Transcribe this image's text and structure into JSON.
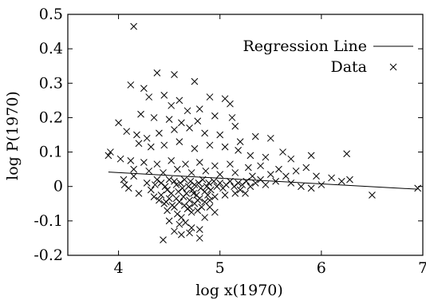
{
  "chart_data": {
    "type": "scatter",
    "xlabel": "log x(1970)",
    "ylabel": "log P(1970)",
    "xlim": [
      3.5,
      7
    ],
    "ylim": [
      -0.2,
      0.5
    ],
    "x_ticks": [
      "4",
      "5",
      "6",
      "7"
    ],
    "y_ticks": [
      "-0.2",
      "-0.1",
      "0",
      "0.1",
      "0.2",
      "0.3",
      "0.4",
      "0.5"
    ],
    "grid": false,
    "legend_position": "top-right",
    "series": [
      {
        "name": "Regression Line",
        "kind": "line",
        "points": [
          [
            3.9,
            0.042
          ],
          [
            6.95,
            -0.008
          ]
        ]
      },
      {
        "name": "Data",
        "kind": "scatter",
        "marker": "x",
        "points": [
          [
            4.15,
            0.465
          ],
          [
            4.38,
            0.33
          ],
          [
            4.55,
            0.325
          ],
          [
            4.25,
            0.285
          ],
          [
            4.12,
            0.295
          ],
          [
            4.75,
            0.305
          ],
          [
            4.3,
            0.26
          ],
          [
            4.45,
            0.265
          ],
          [
            4.6,
            0.25
          ],
          [
            4.9,
            0.26
          ],
          [
            5.05,
            0.255
          ],
          [
            5.1,
            0.24
          ],
          [
            4.52,
            0.235
          ],
          [
            4.68,
            0.22
          ],
          [
            4.8,
            0.225
          ],
          [
            4.22,
            0.21
          ],
          [
            4.35,
            0.2
          ],
          [
            4.5,
            0.195
          ],
          [
            4.62,
            0.185
          ],
          [
            4.78,
            0.19
          ],
          [
            4.95,
            0.205
          ],
          [
            5.12,
            0.2
          ],
          [
            5.15,
            0.175
          ],
          [
            4.0,
            0.185
          ],
          [
            4.08,
            0.16
          ],
          [
            4.18,
            0.15
          ],
          [
            4.28,
            0.14
          ],
          [
            4.4,
            0.155
          ],
          [
            4.55,
            0.165
          ],
          [
            4.7,
            0.17
          ],
          [
            4.85,
            0.155
          ],
          [
            5.0,
            0.15
          ],
          [
            5.2,
            0.13
          ],
          [
            5.35,
            0.145
          ],
          [
            5.5,
            0.14
          ],
          [
            4.2,
            0.125
          ],
          [
            4.32,
            0.115
          ],
          [
            4.45,
            0.12
          ],
          [
            4.6,
            0.13
          ],
          [
            4.75,
            0.11
          ],
          [
            4.9,
            0.12
          ],
          [
            5.05,
            0.115
          ],
          [
            5.18,
            0.105
          ],
          [
            5.3,
            0.09
          ],
          [
            5.45,
            0.085
          ],
          [
            5.62,
            0.1
          ],
          [
            5.7,
            0.08
          ],
          [
            5.9,
            0.09
          ],
          [
            6.25,
            0.095
          ],
          [
            3.92,
            0.1
          ],
          [
            3.9,
            0.09
          ],
          [
            4.02,
            0.08
          ],
          [
            4.12,
            0.075
          ],
          [
            4.25,
            0.07
          ],
          [
            4.38,
            0.065
          ],
          [
            4.52,
            0.075
          ],
          [
            4.66,
            0.065
          ],
          [
            4.8,
            0.07
          ],
          [
            4.95,
            0.06
          ],
          [
            5.1,
            0.065
          ],
          [
            5.28,
            0.055
          ],
          [
            5.4,
            0.06
          ],
          [
            5.58,
            0.05
          ],
          [
            5.75,
            0.045
          ],
          [
            5.85,
            0.055
          ],
          [
            4.15,
            0.05
          ],
          [
            4.3,
            0.045
          ],
          [
            4.44,
            0.04
          ],
          [
            4.58,
            0.05
          ],
          [
            4.72,
            0.04
          ],
          [
            4.86,
            0.045
          ],
          [
            5.0,
            0.035
          ],
          [
            5.15,
            0.04
          ],
          [
            5.32,
            0.03
          ],
          [
            5.5,
            0.035
          ],
          [
            5.65,
            0.03
          ],
          [
            5.95,
            0.03
          ],
          [
            6.1,
            0.025
          ],
          [
            6.28,
            0.02
          ],
          [
            4.05,
            0.02
          ],
          [
            4.06,
            0.005
          ],
          [
            4.2,
            -0.02
          ],
          [
            4.35,
            -0.03
          ],
          [
            4.38,
            0.02
          ],
          [
            4.42,
            0.01
          ],
          [
            4.46,
            0.0
          ],
          [
            4.48,
            -0.01
          ],
          [
            4.5,
            0.02
          ],
          [
            4.52,
            -0.02
          ],
          [
            4.55,
            0.015
          ],
          [
            4.57,
            0.005
          ],
          [
            4.59,
            -0.015
          ],
          [
            4.61,
            0.01
          ],
          [
            4.63,
            -0.005
          ],
          [
            4.65,
            0.02
          ],
          [
            4.67,
            -0.02
          ],
          [
            4.69,
            0.0
          ],
          [
            4.71,
            0.015
          ],
          [
            4.73,
            -0.01
          ],
          [
            4.75,
            0.005
          ],
          [
            4.77,
            -0.025
          ],
          [
            4.79,
            0.01
          ],
          [
            4.81,
            -0.005
          ],
          [
            4.83,
            0.02
          ],
          [
            4.85,
            -0.015
          ],
          [
            4.87,
            0.0
          ],
          [
            4.89,
            0.01
          ],
          [
            4.91,
            -0.01
          ],
          [
            4.94,
            0.015
          ],
          [
            4.97,
            0.0
          ],
          [
            5.0,
            0.01
          ],
          [
            5.03,
            -0.005
          ],
          [
            5.06,
            0.005
          ],
          [
            5.1,
            0.015
          ],
          [
            5.14,
            0.0
          ],
          [
            5.18,
            0.01
          ],
          [
            5.22,
            0.005
          ],
          [
            5.26,
            0.015
          ],
          [
            5.3,
            0.0
          ],
          [
            5.35,
            0.01
          ],
          [
            5.4,
            0.02
          ],
          [
            5.45,
            0.005
          ],
          [
            5.55,
            0.015
          ],
          [
            5.7,
            0.01
          ],
          [
            5.8,
            0.0
          ],
          [
            5.9,
            -0.005
          ],
          [
            6.0,
            0.005
          ],
          [
            6.2,
            0.015
          ],
          [
            6.5,
            -0.025
          ],
          [
            6.95,
            -0.005
          ],
          [
            4.4,
            -0.04
          ],
          [
            4.45,
            -0.05
          ],
          [
            4.5,
            -0.035
          ],
          [
            4.55,
            -0.06
          ],
          [
            4.6,
            -0.045
          ],
          [
            4.65,
            -0.055
          ],
          [
            4.7,
            -0.04
          ],
          [
            4.75,
            -0.05
          ],
          [
            4.8,
            -0.035
          ],
          [
            4.85,
            -0.045
          ],
          [
            4.9,
            -0.04
          ],
          [
            4.95,
            -0.03
          ],
          [
            5.05,
            -0.025
          ],
          [
            5.15,
            -0.02
          ],
          [
            4.48,
            -0.07
          ],
          [
            4.58,
            -0.08
          ],
          [
            4.62,
            -0.09
          ],
          [
            4.68,
            -0.065
          ],
          [
            4.72,
            -0.075
          ],
          [
            4.78,
            -0.07
          ],
          [
            4.5,
            -0.1
          ],
          [
            4.6,
            -0.11
          ],
          [
            4.66,
            -0.105
          ],
          [
            4.72,
            -0.12
          ],
          [
            4.55,
            -0.13
          ],
          [
            4.7,
            -0.135
          ],
          [
            4.8,
            -0.125
          ],
          [
            4.62,
            -0.14
          ],
          [
            4.44,
            -0.155
          ],
          [
            4.8,
            -0.15
          ],
          [
            4.85,
            -0.09
          ],
          [
            4.95,
            -0.075
          ],
          [
            4.9,
            -0.06
          ],
          [
            5.2,
            -0.01
          ],
          [
            5.25,
            -0.02
          ],
          [
            4.1,
            -0.005
          ],
          [
            4.15,
            0.03
          ],
          [
            4.28,
            0.01
          ],
          [
            4.32,
            -0.01
          ],
          [
            4.36,
            0.005
          ],
          [
            4.42,
            -0.025
          ],
          [
            4.47,
            -0.045
          ],
          [
            4.53,
            -0.055
          ],
          [
            4.57,
            -0.035
          ],
          [
            4.64,
            -0.03
          ],
          [
            4.7,
            -0.06
          ],
          [
            4.74,
            -0.02
          ],
          [
            4.78,
            -0.04
          ],
          [
            4.82,
            -0.06
          ],
          [
            4.88,
            -0.025
          ]
        ]
      }
    ]
  }
}
